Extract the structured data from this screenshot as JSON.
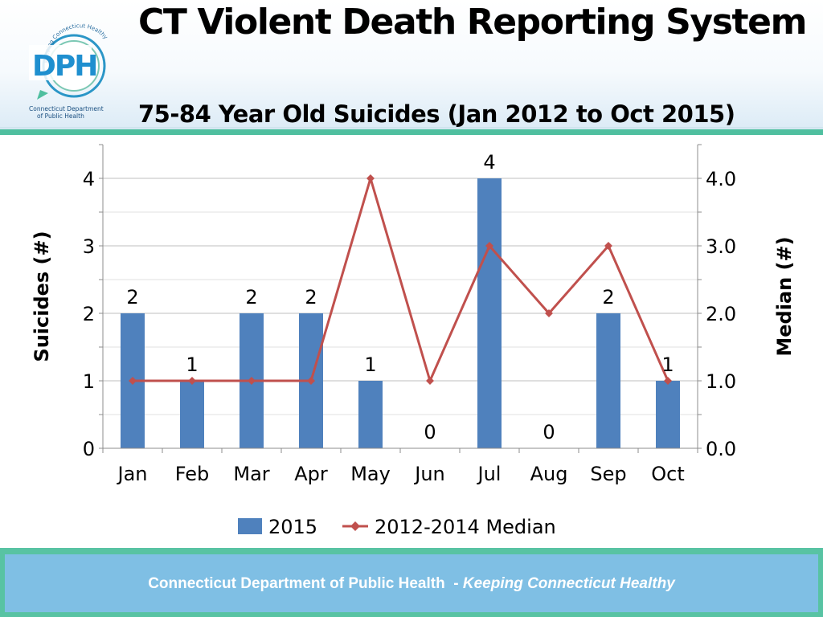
{
  "header": {
    "title": "CT Violent Death Reporting System",
    "logo": {
      "letters": "DPH",
      "arc_text": "Keeping Connecticut Healthy",
      "caption_line1": "Connecticut Department",
      "caption_line2": "of Public Health"
    }
  },
  "chart_data": {
    "type": "bar",
    "title": "75-84 Year Old Suicides (Jan 2012 to Oct 2015)",
    "categories": [
      "Jan",
      "Feb",
      "Mar",
      "Apr",
      "May",
      "Jun",
      "Jul",
      "Aug",
      "Sep",
      "Oct"
    ],
    "series": [
      {
        "name": "2015",
        "type": "bar",
        "axis": "left",
        "color": "#4f81bd",
        "values": [
          2,
          1,
          2,
          2,
          1,
          0,
          4,
          0,
          2,
          1
        ]
      },
      {
        "name": "2012-2014 Median",
        "type": "line",
        "axis": "right",
        "color": "#c0504d",
        "marker": "diamond",
        "values": [
          1,
          1,
          1,
          1,
          4,
          1,
          3,
          2,
          3,
          1
        ]
      }
    ],
    "ylabel": "Suicides (#)",
    "y2label": "Median (#)",
    "ylim": [
      0,
      4.5
    ],
    "y2lim": [
      0,
      4.5
    ],
    "yticks": [
      "0",
      "1",
      "2",
      "3",
      "4"
    ],
    "y2ticks": [
      "0.0",
      "1.0",
      "2.0",
      "3.0",
      "4.0"
    ],
    "data_labels": true,
    "grid": true,
    "legend": "bottom"
  },
  "footer": {
    "org": "Connecticut Department of Public Health",
    "separator": "-",
    "tagline": "Keeping Connecticut Healthy"
  }
}
